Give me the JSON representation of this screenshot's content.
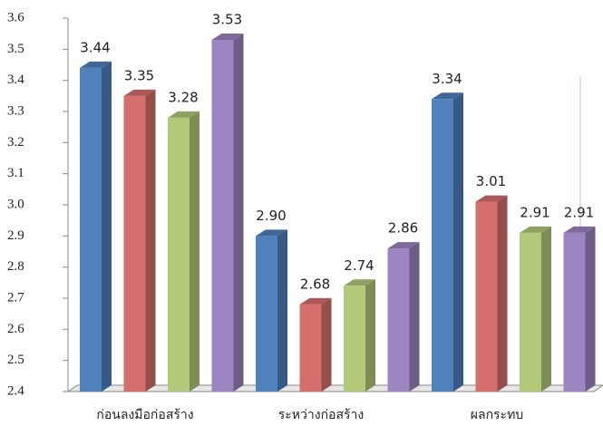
{
  "chart_data": {
    "type": "bar3d",
    "categories": [
      "ก่อนลงมือก่อสร้าง",
      "ระหว่างก่อสร้าง",
      "ผลกระทบ"
    ],
    "series": [
      {
        "color": "#4f81bd",
        "values": [
          3.44,
          2.9,
          3.34
        ],
        "value_labels": [
          "3.44",
          "2.90",
          "3.34"
        ]
      },
      {
        "color": "#d46f6c",
        "values": [
          3.35,
          2.68,
          3.01
        ],
        "value_labels": [
          "3.35",
          "2.68",
          "3.01"
        ]
      },
      {
        "color": "#b2c97a",
        "values": [
          3.28,
          2.74,
          2.91
        ],
        "value_labels": [
          "3.28",
          "2.74",
          "2.91"
        ]
      },
      {
        "color": "#9c85c0",
        "values": [
          3.53,
          2.86,
          2.91
        ],
        "value_labels": [
          "3.53",
          "2.86",
          "2.91"
        ]
      }
    ],
    "ylim": [
      2.4,
      3.6
    ],
    "yticks": [
      2.4,
      2.5,
      2.6,
      2.7,
      2.8,
      2.9,
      {
        "value": 3,
        "label": "3.0"
      },
      3.1,
      3.2,
      3.3,
      3.4,
      3.5,
      3.6
    ]
  }
}
